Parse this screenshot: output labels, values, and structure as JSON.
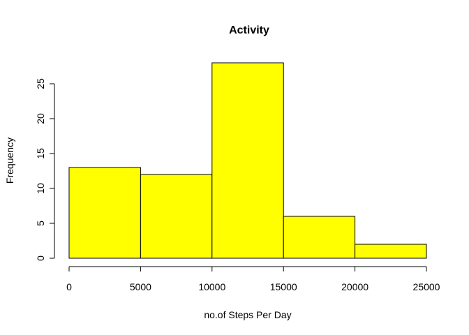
{
  "chart_data": {
    "type": "bar",
    "title": "Activity",
    "xlabel": "no.of Steps Per Day",
    "ylabel": "Frequency",
    "bins": [
      {
        "start": 0,
        "end": 5000,
        "count": 13
      },
      {
        "start": 5000,
        "end": 10000,
        "count": 12
      },
      {
        "start": 10000,
        "end": 15000,
        "count": 28
      },
      {
        "start": 15000,
        "end": 20000,
        "count": 6
      },
      {
        "start": 20000,
        "end": 25000,
        "count": 2
      }
    ],
    "xlim": [
      0,
      25000
    ],
    "ylim": [
      0,
      28
    ],
    "x_ticks": [
      0,
      5000,
      10000,
      15000,
      20000,
      25000
    ],
    "y_ticks": [
      0,
      5,
      10,
      15,
      20,
      25
    ],
    "bar_color": "#ffff00",
    "grid": false
  }
}
